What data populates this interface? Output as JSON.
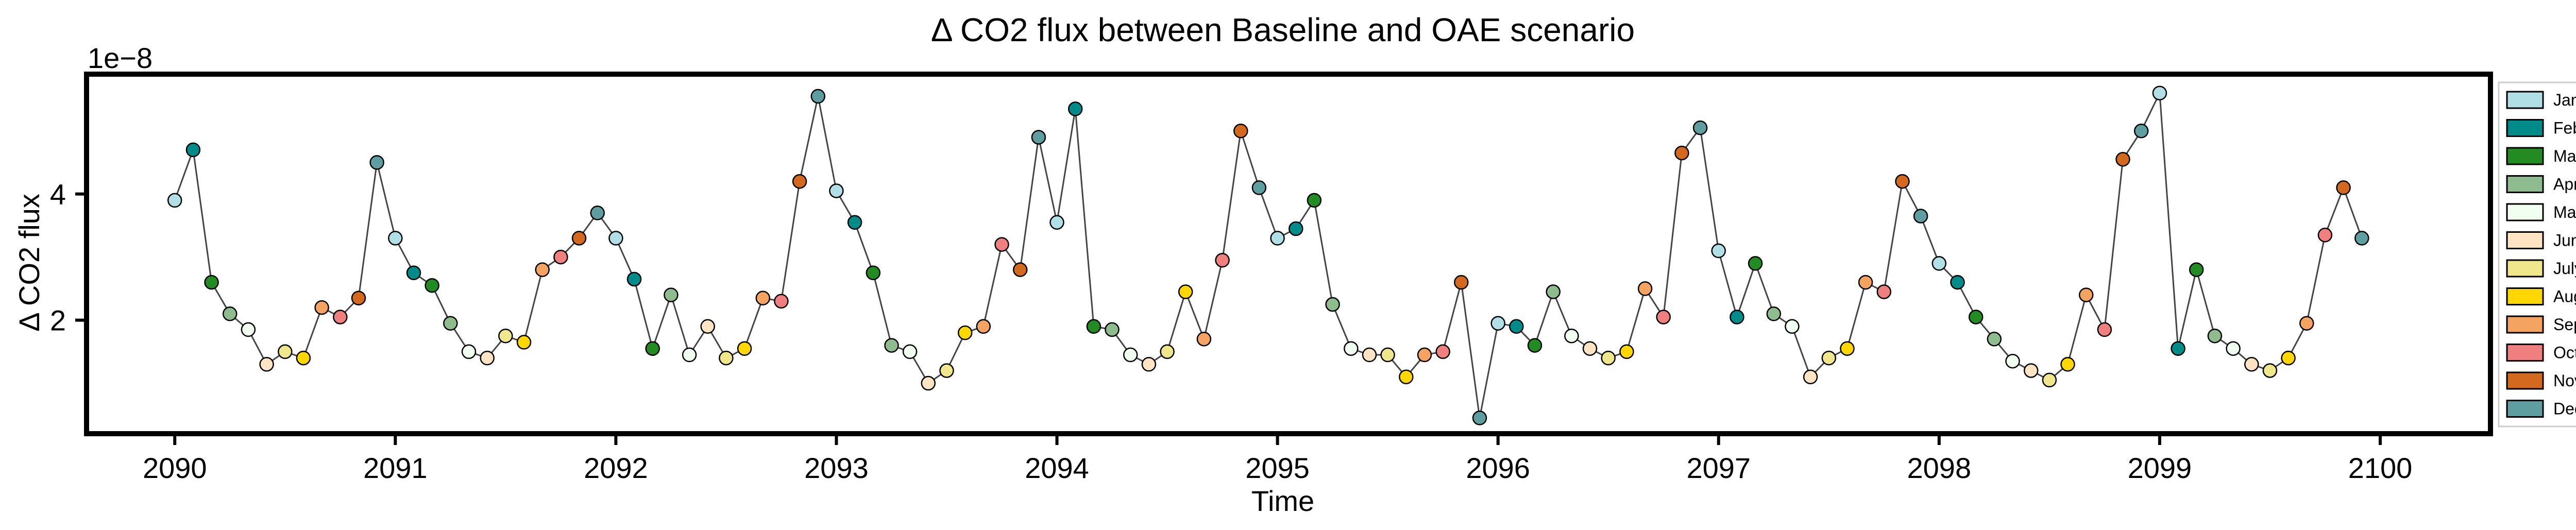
{
  "chart_data": {
    "type": "line",
    "title": "Δ CO2 flux between Baseline and OAE scenario",
    "xlabel": "Time",
    "ylabel": "Δ CO2 flux",
    "y_multiplier_label": "1e−8",
    "xlim": [
      2089.6,
      2100.5
    ],
    "ylim": [
      0.2,
      5.9
    ],
    "x_ticks": [
      2090,
      2091,
      2092,
      2093,
      2094,
      2095,
      2096,
      2097,
      2098,
      2099,
      2100
    ],
    "x_tick_labels": [
      "2090",
      "2091",
      "2092",
      "2093",
      "2094",
      "2095",
      "2096",
      "2097",
      "2098",
      "2099",
      "2100"
    ],
    "y_ticks": [
      2,
      4
    ],
    "y_tick_labels": [
      "2",
      "4"
    ],
    "grid": false,
    "legend_position": "right",
    "months": [
      "Jan",
      "Feb",
      "Mar",
      "Apr",
      "May",
      "June",
      "July",
      "Aug",
      "Sept",
      "Oct",
      "Nov",
      "Dec"
    ],
    "month_colors": [
      "#b0e0e6",
      "#008b8b",
      "#228b22",
      "#8fbc8f",
      "#f0fff0",
      "#ffe4c4",
      "#f0e68c",
      "#ffd700",
      "#f4a460",
      "#f08080",
      "#d2691e",
      "#5f9ea0"
    ],
    "start_year": 2090,
    "values": [
      3.9,
      4.7,
      2.6,
      2.1,
      1.85,
      1.3,
      1.5,
      1.4,
      2.2,
      2.05,
      2.35,
      4.5,
      3.3,
      2.75,
      2.55,
      1.95,
      1.5,
      1.4,
      1.75,
      1.65,
      2.8,
      3.0,
      3.3,
      3.7,
      3.3,
      2.65,
      1.55,
      2.4,
      1.45,
      1.9,
      1.4,
      1.55,
      2.35,
      2.3,
      4.2,
      5.55,
      4.05,
      3.55,
      2.75,
      1.6,
      1.5,
      1.0,
      1.2,
      1.8,
      1.9,
      3.2,
      2.8,
      4.9,
      3.55,
      5.35,
      1.9,
      1.85,
      1.45,
      1.3,
      1.5,
      2.45,
      1.7,
      2.95,
      5.0,
      4.1,
      3.3,
      3.45,
      3.9,
      2.25,
      1.55,
      1.45,
      1.45,
      1.1,
      1.45,
      1.5,
      2.6,
      0.45,
      1.95,
      1.9,
      1.6,
      2.45,
      1.75,
      1.55,
      1.4,
      1.5,
      2.5,
      2.05,
      4.65,
      5.05,
      3.1,
      2.05,
      2.9,
      2.1,
      1.9,
      1.1,
      1.4,
      1.55,
      2.6,
      2.45,
      4.2,
      3.65,
      2.9,
      2.6,
      2.05,
      1.7,
      1.35,
      1.2,
      1.05,
      1.3,
      2.4,
      1.85,
      4.55,
      5.0,
      5.6,
      1.55,
      2.8,
      1.75,
      1.55,
      1.3,
      1.2,
      1.4,
      1.95,
      3.35,
      4.1,
      3.3
    ]
  }
}
